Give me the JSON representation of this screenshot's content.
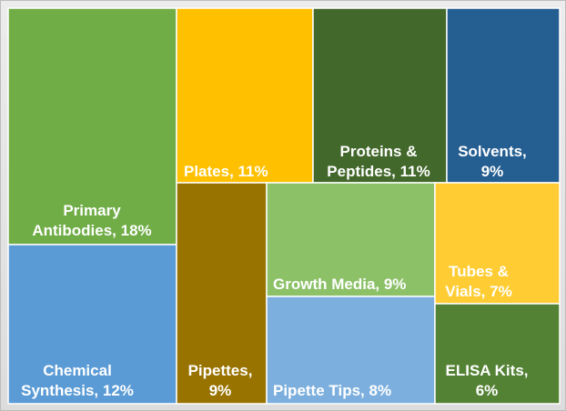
{
  "chart_data": {
    "type": "treemap",
    "title": "",
    "items": [
      {
        "lines": [
          "Primary",
          "Antibodies, 18%"
        ],
        "label": "Primary Antibodies, 18%",
        "value": 18,
        "color": "#70ad47"
      },
      {
        "lines": [
          "Chemical",
          "Synthesis, 12%"
        ],
        "label": "Chemical Synthesis, 12%",
        "value": 12,
        "color": "#5b9bd5"
      },
      {
        "lines": [
          "Plates, 11%"
        ],
        "label": "Plates, 11%",
        "value": 11,
        "color": "#ffc000"
      },
      {
        "lines": [
          "Proteins &",
          "Peptides, 11%"
        ],
        "label": "Proteins & Peptides, 11%",
        "value": 11,
        "color": "#43682b"
      },
      {
        "lines": [
          "Solvents,",
          "9%"
        ],
        "label": "Solvents, 9%",
        "value": 9,
        "color": "#255e91"
      },
      {
        "lines": [
          "Pipettes,",
          "9%"
        ],
        "label": "Pipettes, 9%",
        "value": 9,
        "color": "#997300"
      },
      {
        "lines": [
          "Growth Media, 9%"
        ],
        "label": "Growth Media, 9%",
        "value": 9,
        "color": "#8cc168"
      },
      {
        "lines": [
          "Pipette Tips, 8%"
        ],
        "label": "Pipette Tips, 8%",
        "value": 8,
        "color": "#7cafdd"
      },
      {
        "lines": [
          "Tubes &",
          "Vials, 7%"
        ],
        "label": "Tubes & Vials, 7%",
        "value": 7,
        "color": "#ffcd33"
      },
      {
        "lines": [
          "ELISA Kits,",
          "6%"
        ],
        "label": "ELISA Kits, 6%",
        "value": 6,
        "color": "#548235"
      }
    ]
  }
}
